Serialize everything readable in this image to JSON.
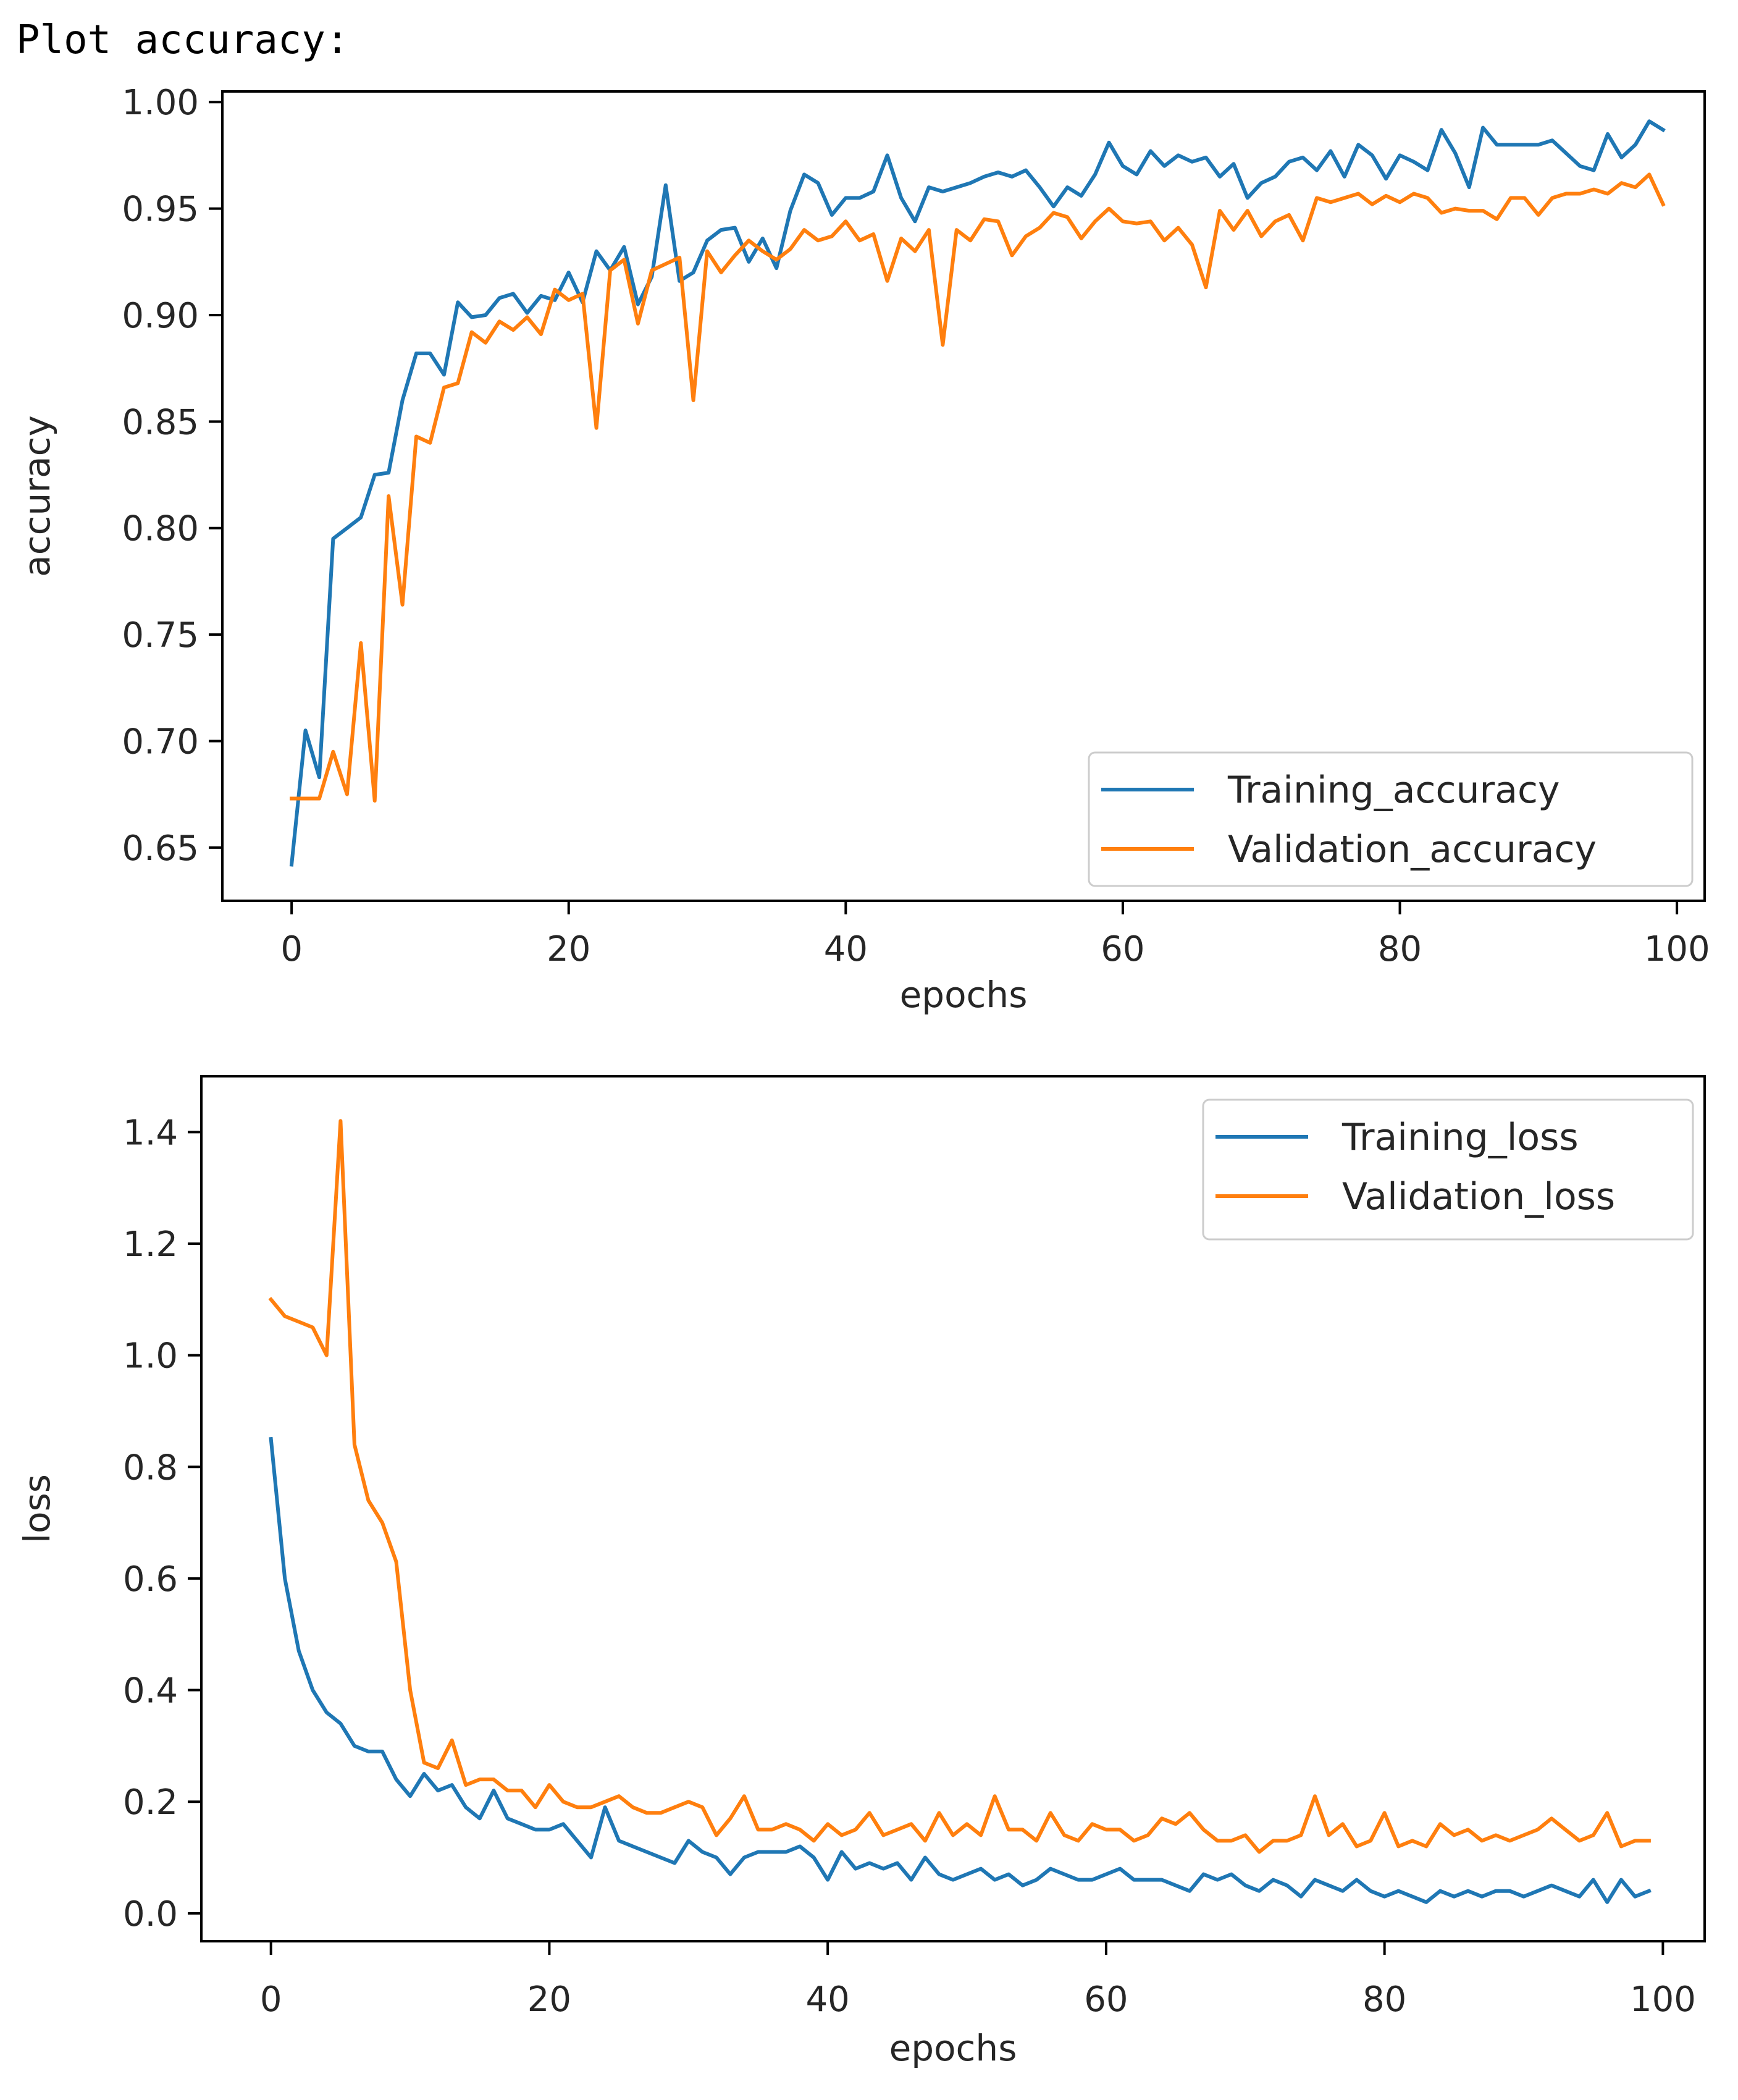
{
  "header": {
    "text": "Plot accuracy:"
  },
  "chart_data": [
    {
      "type": "line",
      "title": "",
      "xlabel": "epochs",
      "ylabel": "accuracy",
      "xlim": [
        -5,
        102
      ],
      "ylim": [
        0.625,
        1.005
      ],
      "xticks": [
        0,
        20,
        40,
        60,
        80,
        100
      ],
      "xtick_labels": [
        "0",
        "20",
        "40",
        "60",
        "80",
        "100"
      ],
      "yticks": [
        0.65,
        0.7,
        0.75,
        0.8,
        0.85,
        0.9,
        0.95,
        1.0
      ],
      "ytick_labels": [
        "0.65",
        "0.70",
        "0.75",
        "0.80",
        "0.85",
        "0.90",
        "0.95",
        "1.00"
      ],
      "legend_position": "lower-right",
      "x": [
        0,
        1,
        2,
        3,
        4,
        5,
        6,
        7,
        8,
        9,
        10,
        11,
        12,
        13,
        14,
        15,
        16,
        17,
        18,
        19,
        20,
        21,
        22,
        23,
        24,
        25,
        26,
        27,
        28,
        29,
        30,
        31,
        32,
        33,
        34,
        35,
        36,
        37,
        38,
        39,
        40,
        41,
        42,
        43,
        44,
        45,
        46,
        47,
        48,
        49,
        50,
        51,
        52,
        53,
        54,
        55,
        56,
        57,
        58,
        59,
        60,
        61,
        62,
        63,
        64,
        65,
        66,
        67,
        68,
        69,
        70,
        71,
        72,
        73,
        74,
        75,
        76,
        77,
        78,
        79,
        80,
        81,
        82,
        83,
        84,
        85,
        86,
        87,
        88,
        89,
        90,
        91,
        92,
        93,
        94,
        95,
        96,
        97,
        98,
        99
      ],
      "series": [
        {
          "name": "Training_accuracy",
          "color": "#1f77b4",
          "values": [
            0.642,
            0.705,
            0.683,
            0.795,
            0.8,
            0.805,
            0.825,
            0.826,
            0.86,
            0.882,
            0.882,
            0.872,
            0.906,
            0.899,
            0.9,
            0.908,
            0.91,
            0.901,
            0.909,
            0.907,
            0.92,
            0.906,
            0.93,
            0.921,
            0.932,
            0.905,
            0.918,
            0.961,
            0.916,
            0.92,
            0.935,
            0.94,
            0.941,
            0.925,
            0.936,
            0.922,
            0.949,
            0.966,
            0.962,
            0.947,
            0.955,
            0.955,
            0.958,
            0.975,
            0.955,
            0.944,
            0.96,
            0.958,
            0.96,
            0.962,
            0.965,
            0.967,
            0.965,
            0.968,
            0.96,
            0.951,
            0.96,
            0.956,
            0.966,
            0.981,
            0.97,
            0.966,
            0.977,
            0.97,
            0.975,
            0.972,
            0.974,
            0.965,
            0.971,
            0.955,
            0.962,
            0.965,
            0.972,
            0.974,
            0.968,
            0.977,
            0.965,
            0.98,
            0.975,
            0.964,
            0.975,
            0.972,
            0.968,
            0.987,
            0.976,
            0.96,
            0.988,
            0.98,
            0.98,
            0.98,
            0.98,
            0.982,
            0.976,
            0.97,
            0.968,
            0.985,
            0.974,
            0.98,
            0.991,
            0.987
          ]
        },
        {
          "name": "Validation_accuracy",
          "color": "#ff7f0e",
          "values": [
            0.673,
            0.673,
            0.673,
            0.695,
            0.675,
            0.746,
            0.672,
            0.815,
            0.764,
            0.843,
            0.84,
            0.866,
            0.868,
            0.892,
            0.887,
            0.897,
            0.893,
            0.899,
            0.891,
            0.912,
            0.907,
            0.91,
            0.847,
            0.921,
            0.926,
            0.896,
            0.921,
            0.924,
            0.927,
            0.86,
            0.93,
            0.92,
            0.928,
            0.935,
            0.93,
            0.926,
            0.931,
            0.94,
            0.935,
            0.937,
            0.944,
            0.935,
            0.938,
            0.916,
            0.936,
            0.93,
            0.94,
            0.886,
            0.94,
            0.935,
            0.945,
            0.944,
            0.928,
            0.937,
            0.941,
            0.948,
            0.946,
            0.936,
            0.944,
            0.95,
            0.944,
            0.943,
            0.944,
            0.935,
            0.941,
            0.933,
            0.913,
            0.949,
            0.94,
            0.949,
            0.937,
            0.944,
            0.947,
            0.935,
            0.955,
            0.953,
            0.955,
            0.957,
            0.952,
            0.956,
            0.953,
            0.957,
            0.955,
            0.948,
            0.95,
            0.949,
            0.949,
            0.945,
            0.955,
            0.955,
            0.947,
            0.955,
            0.957,
            0.957,
            0.959,
            0.957,
            0.962,
            0.96,
            0.966,
            0.952
          ]
        }
      ]
    },
    {
      "type": "line",
      "title": "",
      "xlabel": "epochs",
      "ylabel": "loss",
      "xlim": [
        -5,
        103
      ],
      "ylim": [
        -0.05,
        1.5
      ],
      "xticks": [
        0,
        20,
        40,
        60,
        80,
        100
      ],
      "xtick_labels": [
        "0",
        "20",
        "40",
        "60",
        "80",
        "100"
      ],
      "yticks": [
        0.0,
        0.2,
        0.4,
        0.6,
        0.8,
        1.0,
        1.2,
        1.4
      ],
      "ytick_labels": [
        "0.0",
        "0.2",
        "0.4",
        "0.6",
        "0.8",
        "1.0",
        "1.2",
        "1.4"
      ],
      "legend_position": "upper-right",
      "x": [
        0,
        1,
        2,
        3,
        4,
        5,
        6,
        7,
        8,
        9,
        10,
        11,
        12,
        13,
        14,
        15,
        16,
        17,
        18,
        19,
        20,
        21,
        22,
        23,
        24,
        25,
        26,
        27,
        28,
        29,
        30,
        31,
        32,
        33,
        34,
        35,
        36,
        37,
        38,
        39,
        40,
        41,
        42,
        43,
        44,
        45,
        46,
        47,
        48,
        49,
        50,
        51,
        52,
        53,
        54,
        55,
        56,
        57,
        58,
        59,
        60,
        61,
        62,
        63,
        64,
        65,
        66,
        67,
        68,
        69,
        70,
        71,
        72,
        73,
        74,
        75,
        76,
        77,
        78,
        79,
        80,
        81,
        82,
        83,
        84,
        85,
        86,
        87,
        88,
        89,
        90,
        91,
        92,
        93,
        94,
        95,
        96,
        97,
        98,
        99
      ],
      "series": [
        {
          "name": "Training_loss",
          "color": "#1f77b4",
          "values": [
            0.85,
            0.6,
            0.47,
            0.4,
            0.36,
            0.34,
            0.3,
            0.29,
            0.29,
            0.24,
            0.21,
            0.25,
            0.22,
            0.23,
            0.19,
            0.17,
            0.22,
            0.17,
            0.16,
            0.15,
            0.15,
            0.16,
            0.13,
            0.1,
            0.19,
            0.13,
            0.12,
            0.11,
            0.1,
            0.09,
            0.13,
            0.11,
            0.1,
            0.07,
            0.1,
            0.11,
            0.11,
            0.11,
            0.12,
            0.1,
            0.06,
            0.11,
            0.08,
            0.09,
            0.08,
            0.09,
            0.06,
            0.1,
            0.07,
            0.06,
            0.07,
            0.08,
            0.06,
            0.07,
            0.05,
            0.06,
            0.08,
            0.07,
            0.06,
            0.06,
            0.07,
            0.08,
            0.06,
            0.06,
            0.06,
            0.05,
            0.04,
            0.07,
            0.06,
            0.07,
            0.05,
            0.04,
            0.06,
            0.05,
            0.03,
            0.06,
            0.05,
            0.04,
            0.06,
            0.04,
            0.03,
            0.04,
            0.03,
            0.02,
            0.04,
            0.03,
            0.04,
            0.03,
            0.04,
            0.04,
            0.03,
            0.04,
            0.05,
            0.04,
            0.03,
            0.06,
            0.02,
            0.06,
            0.03,
            0.04
          ]
        },
        {
          "name": "Validation_loss",
          "color": "#ff7f0e",
          "values": [
            1.1,
            1.07,
            1.06,
            1.05,
            1.0,
            1.42,
            0.84,
            0.74,
            0.7,
            0.63,
            0.4,
            0.27,
            0.26,
            0.31,
            0.23,
            0.24,
            0.24,
            0.22,
            0.22,
            0.19,
            0.23,
            0.2,
            0.19,
            0.19,
            0.2,
            0.21,
            0.19,
            0.18,
            0.18,
            0.19,
            0.2,
            0.19,
            0.14,
            0.17,
            0.21,
            0.15,
            0.15,
            0.16,
            0.15,
            0.13,
            0.16,
            0.14,
            0.15,
            0.18,
            0.14,
            0.15,
            0.16,
            0.13,
            0.18,
            0.14,
            0.16,
            0.14,
            0.21,
            0.15,
            0.15,
            0.13,
            0.18,
            0.14,
            0.13,
            0.16,
            0.15,
            0.15,
            0.13,
            0.14,
            0.17,
            0.16,
            0.18,
            0.15,
            0.13,
            0.13,
            0.14,
            0.11,
            0.13,
            0.13,
            0.14,
            0.21,
            0.14,
            0.16,
            0.12,
            0.13,
            0.18,
            0.12,
            0.13,
            0.12,
            0.16,
            0.14,
            0.15,
            0.13,
            0.14,
            0.13,
            0.14,
            0.15,
            0.17,
            0.15,
            0.13,
            0.14,
            0.18,
            0.12,
            0.13,
            0.13
          ]
        }
      ]
    }
  ]
}
